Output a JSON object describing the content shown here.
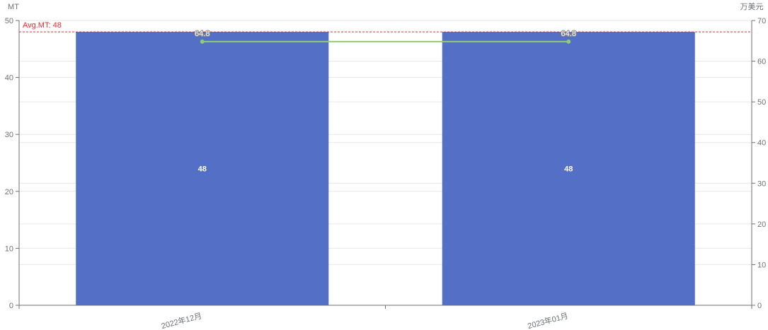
{
  "chart_data": {
    "type": "bar",
    "categories": [
      "2022年12月",
      "2023年01月"
    ],
    "series": [
      {
        "name": "",
        "type": "bar",
        "axis": "left",
        "values": [
          48,
          48
        ],
        "color": "#5470c6"
      },
      {
        "name": "",
        "type": "line",
        "axis": "right",
        "values": [
          64.8,
          64.8
        ],
        "color": "#91cc75"
      }
    ],
    "y_left": {
      "unit": "MT",
      "ylim": [
        0,
        50
      ],
      "ticks": [
        "0",
        "10",
        "20",
        "30",
        "40",
        "50"
      ]
    },
    "y_right": {
      "unit": "万美元",
      "ylim": [
        0,
        70
      ],
      "ticks": [
        "0",
        "10",
        "20",
        "30",
        "40",
        "50",
        "60",
        "70"
      ]
    },
    "bar_labels": [
      "48",
      "48"
    ],
    "line_labels": [
      "64.8",
      "64.8"
    ],
    "mark_line": {
      "label": "Avg.MT: 48",
      "value": 48,
      "color": "#e0302e"
    },
    "grid": true,
    "grid_color": "#e6e6e6",
    "axis_color": "#6e7079"
  }
}
